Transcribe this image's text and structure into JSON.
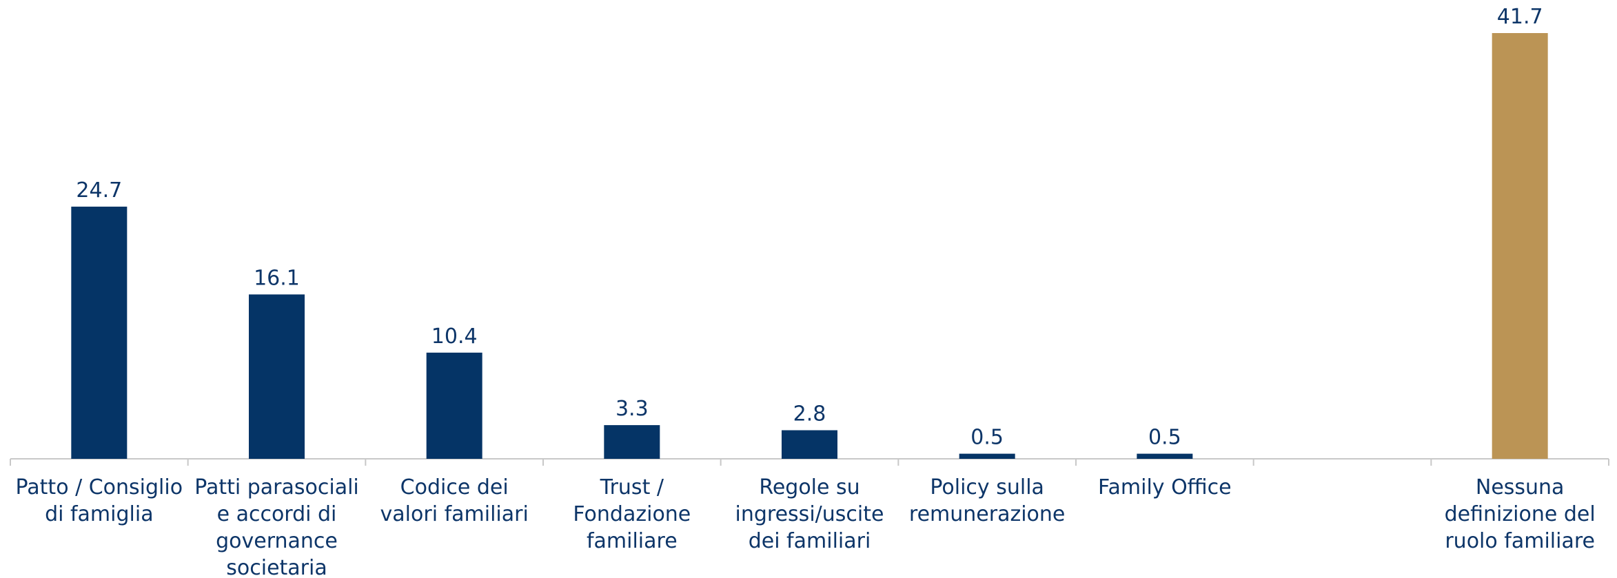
{
  "chart_data": {
    "type": "bar",
    "categories": [
      "Patto / Consiglio\ndi famiglia",
      "Patti parasociali\ne accordi di\ngovernance\nsocietaria",
      "Codice dei\nvalori familiari",
      "Trust /\nFondazione\nfamiliare",
      "Regole su\ningressi/uscite\ndei familiari",
      "Policy sulla\nremunerazione",
      "Family Office",
      null,
      "Nessuna\ndefinizione del\nruolo familiare"
    ],
    "values": [
      24.7,
      16.1,
      10.4,
      3.3,
      2.8,
      0.5,
      0.5,
      null,
      41.7
    ],
    "colors": [
      "#053466",
      "#053466",
      "#053466",
      "#053466",
      "#053466",
      "#053466",
      "#053466",
      null,
      "#bb9455"
    ]
  }
}
